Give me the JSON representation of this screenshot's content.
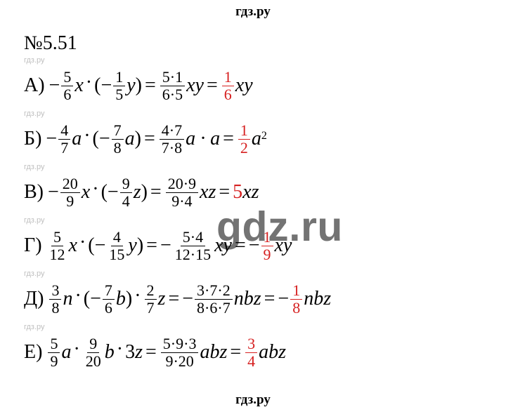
{
  "header": "гдз.ру",
  "footer": "гдз.ру",
  "problem_number": "№5.51",
  "small_wm": "гдз.ру",
  "big_wm": "gdz.ru",
  "lines": {
    "A": {
      "label": "А)",
      "lhs_sign": "−",
      "f1": {
        "n": "5",
        "d": "6"
      },
      "v1": "x",
      "paren_sign": "−",
      "f2": {
        "n": "1",
        "d": "5"
      },
      "v2": "y",
      "mid_f": {
        "n": "5·1",
        "d": "6·5"
      },
      "mid_v": "xy",
      "res_f": {
        "n": "1",
        "d": "6"
      },
      "res_v": "xy"
    },
    "B": {
      "label": "Б)",
      "lhs_sign": "−",
      "f1": {
        "n": "4",
        "d": "7"
      },
      "v1": "a",
      "paren_sign": "−",
      "f2": {
        "n": "7",
        "d": "8"
      },
      "v2": "a",
      "mid_f": {
        "n": "4·7",
        "d": "7·8"
      },
      "mid_v": "a · a",
      "res_f": {
        "n": "1",
        "d": "2"
      },
      "res_v": "a",
      "res_sup": "2"
    },
    "V": {
      "label": "В)",
      "lhs_sign": "−",
      "f1": {
        "n": "20",
        "d": "9"
      },
      "v1": "x",
      "paren_sign": "−",
      "f2": {
        "n": "9",
        "d": "4"
      },
      "v2": "z",
      "mid_f": {
        "n": "20·9",
        "d": "9·4"
      },
      "mid_v": "xz",
      "res_int": "5",
      "res_v": "xz"
    },
    "G": {
      "label": "Г)",
      "f1": {
        "n": "5",
        "d": "12"
      },
      "v1": "x",
      "paren_sign": "−",
      "f2": {
        "n": "4",
        "d": "15"
      },
      "v2": "y",
      "mid_sign": "−",
      "mid_f": {
        "n": "5·4",
        "d": "12·15"
      },
      "mid_v": "xy",
      "res_sign": "−",
      "res_f": {
        "n": "1",
        "d": "9"
      },
      "res_v": "xy"
    },
    "D": {
      "label": "Д)",
      "f1": {
        "n": "3",
        "d": "8"
      },
      "v1": "n",
      "paren_sign": "−",
      "f2": {
        "n": "7",
        "d": "6"
      },
      "v2": "b",
      "f3": {
        "n": "2",
        "d": "7"
      },
      "v3": "z",
      "mid_sign": "−",
      "mid_f": {
        "n": "3·7·2",
        "d": "8·6·7"
      },
      "mid_v": "nbz",
      "res_sign": "−",
      "res_f": {
        "n": "1",
        "d": "8"
      },
      "res_v": "nbz"
    },
    "E": {
      "label": "Е)",
      "f1": {
        "n": "5",
        "d": "9"
      },
      "v1": "a",
      "f2": {
        "n": "9",
        "d": "20"
      },
      "v2": "b",
      "int3": "3",
      "v3": "z",
      "mid_f": {
        "n": "5·9·3",
        "d": "9·20"
      },
      "mid_v": "abz",
      "res_f": {
        "n": "3",
        "d": "4"
      },
      "res_v": "abz"
    }
  }
}
